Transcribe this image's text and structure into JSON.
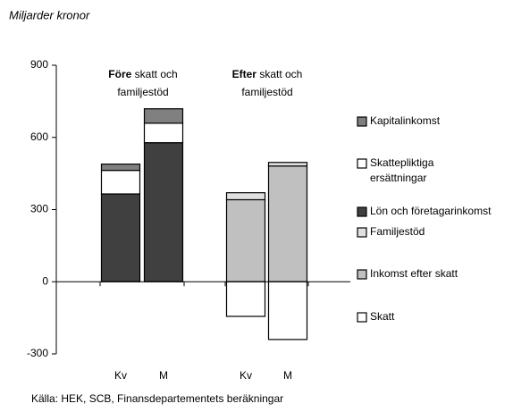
{
  "chart_data": {
    "type": "stacked-bar",
    "title": "Miljarder kronor",
    "source": "Källa: HEK, SCB, Finansdepartementets beräkningar",
    "groups": [
      {
        "bold": "Före",
        "line1": "skatt och",
        "line2": "familjestöd"
      },
      {
        "bold": "Efter",
        "line1": "skatt och",
        "line2": "familjestöd"
      }
    ],
    "categories": [
      "Kv",
      "M",
      "Kv",
      "M"
    ],
    "series": [
      {
        "name": "Lön och företagarinkomst",
        "color": "#404040",
        "values": [
          365,
          578,
          null,
          null
        ]
      },
      {
        "name": "Skattepliktiga ersättningar",
        "color": "#ffffff",
        "values": [
          98,
          81,
          null,
          null
        ]
      },
      {
        "name": "Kapitalinkomst",
        "color": "#808080",
        "values": [
          26,
          60,
          null,
          null
        ]
      },
      {
        "name": "Inkomst efter skatt",
        "color": "#c0c0c0",
        "values": [
          null,
          null,
          341,
          481
        ]
      },
      {
        "name": "Familjestöd",
        "color": "#e0e0e0",
        "values": [
          null,
          null,
          29,
          15
        ]
      },
      {
        "name": "Skatt",
        "color": "#ffffff",
        "values": [
          null,
          null,
          -144,
          -240
        ]
      }
    ],
    "legend_order": [
      2,
      1,
      0,
      4,
      3,
      5
    ],
    "ylim": [
      -300,
      900
    ],
    "yticks": [
      -300,
      0,
      300,
      600,
      900
    ]
  }
}
